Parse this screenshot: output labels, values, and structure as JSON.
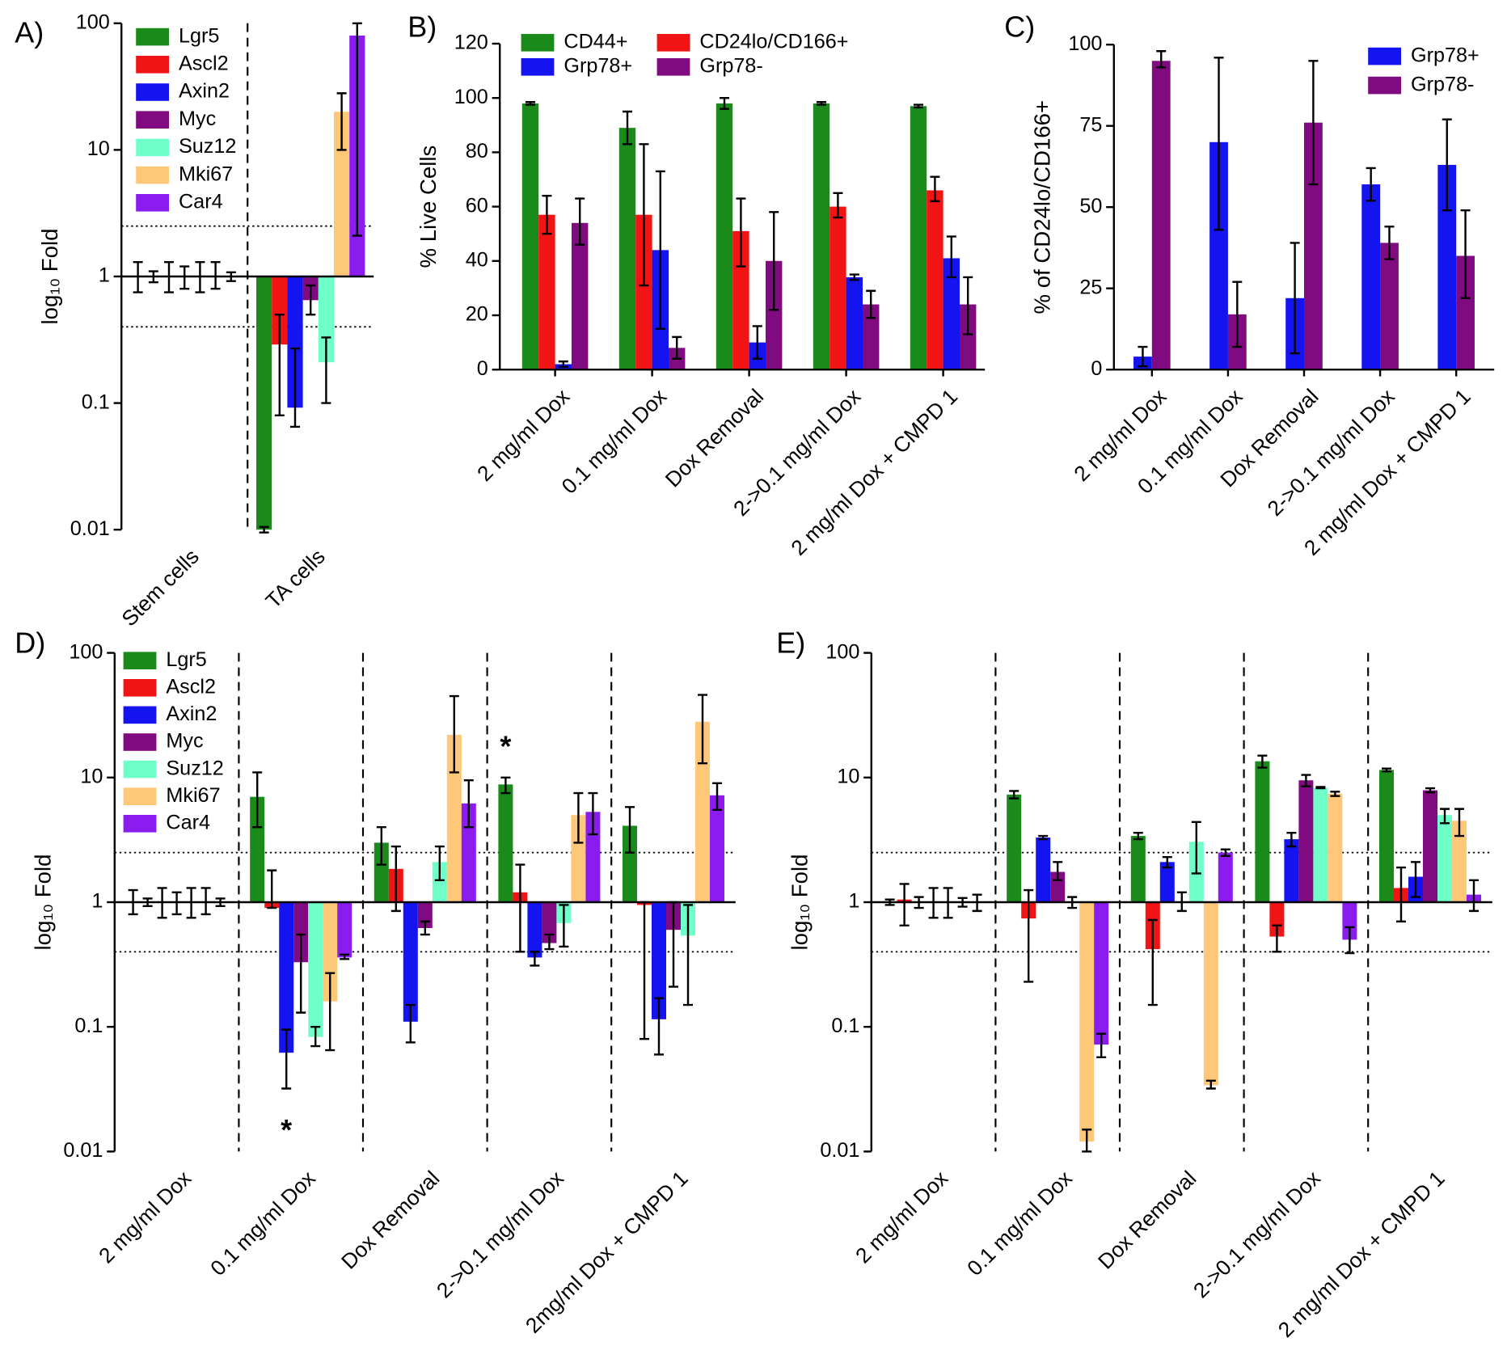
{
  "chart_data": [
    {
      "type": "log-bar",
      "panel_label": "A)",
      "ylabel": "log₁₀ Fold",
      "log_scale": true,
      "ylim": [
        0.01,
        100
      ],
      "yticks": [
        0.01,
        0.1,
        1,
        10,
        100
      ],
      "bar_base": 1,
      "ref_lines": [
        2.5,
        0.4
      ],
      "group_separators": true,
      "categories": [
        "Stem cells",
        "TA cells"
      ],
      "series": [
        {
          "name": "Lgr5",
          "color": "#1a8a1a",
          "values": [
            1,
            0.01
          ],
          "err_low": [
            0.75,
            0.0095
          ],
          "err_high": [
            1.3,
            0.0105
          ]
        },
        {
          "name": "Ascl2",
          "color": "#f01414",
          "values": [
            1,
            0.29
          ],
          "err_low": [
            0.9,
            0.08
          ],
          "err_high": [
            1.1,
            0.5
          ]
        },
        {
          "name": "Axin2",
          "color": "#1414f0",
          "values": [
            1,
            0.092
          ],
          "err_low": [
            0.75,
            0.065
          ],
          "err_high": [
            1.3,
            0.27
          ]
        },
        {
          "name": "Myc",
          "color": "#800a80",
          "values": [
            1,
            0.65
          ],
          "err_low": [
            0.8,
            0.5
          ],
          "err_high": [
            1.2,
            0.85
          ]
        },
        {
          "name": "Suz12",
          "color": "#6fffc8",
          "values": [
            1,
            0.21
          ],
          "err_low": [
            0.75,
            0.1
          ],
          "err_high": [
            1.3,
            0.33
          ]
        },
        {
          "name": "Mki67",
          "color": "#ffc878",
          "values": [
            1,
            20
          ],
          "err_low": [
            0.8,
            10
          ],
          "err_high": [
            1.3,
            28
          ]
        },
        {
          "name": "Car4",
          "color": "#8b1cf0",
          "values": [
            1,
            80
          ],
          "err_low": [
            0.92,
            2.1
          ],
          "err_high": [
            1.08,
            100
          ]
        }
      ]
    },
    {
      "type": "bar",
      "panel_label": "B)",
      "ylabel": "% Live Cells",
      "ylim": [
        0,
        120
      ],
      "yticks": [
        0,
        20,
        40,
        60,
        80,
        100,
        120
      ],
      "bar_base": 0,
      "categories": [
        "2 mg/ml Dox",
        "0.1 mg/ml Dox",
        "Dox Removal",
        "2->0.1 mg/ml Dox",
        "2 mg/ml Dox + CMPD 1"
      ],
      "series": [
        {
          "name": "CD44+",
          "color": "#1a8a1a",
          "values": [
            98,
            89,
            98,
            98,
            97
          ],
          "err_low": [
            97.5,
            83,
            96,
            97.5,
            96.5
          ],
          "err_high": [
            98.5,
            95,
            100,
            98.5,
            97.5
          ]
        },
        {
          "name": "CD24lo/CD166+",
          "color": "#f01414",
          "values": [
            57,
            57,
            51,
            60,
            66
          ],
          "err_low": [
            50,
            31,
            38,
            56,
            62
          ],
          "err_high": [
            64,
            83,
            63,
            65,
            71
          ]
        },
        {
          "name": "Grp78+",
          "color": "#1414f0",
          "values": [
            2,
            44,
            10,
            34,
            41
          ],
          "err_low": [
            1,
            15,
            4,
            33,
            34
          ],
          "err_high": [
            3,
            73,
            16,
            35,
            49
          ]
        },
        {
          "name": "Grp78-",
          "color": "#800a80",
          "values": [
            54,
            8,
            40,
            24,
            24
          ],
          "err_low": [
            46,
            4,
            22,
            19,
            13
          ],
          "err_high": [
            63,
            12,
            58,
            29,
            34
          ]
        }
      ]
    },
    {
      "type": "bar",
      "panel_label": "C)",
      "ylabel": "% of CD24lo/CD166+",
      "ylim": [
        0,
        100
      ],
      "yticks": [
        0,
        25,
        50,
        75,
        100
      ],
      "bar_base": 0,
      "categories": [
        "2 mg/ml Dox",
        "0.1 mg/ml Dox",
        "Dox Removal",
        "2->0.1 mg/ml Dox",
        "2 mg/ml Dox + CMPD 1"
      ],
      "series": [
        {
          "name": "Grp78+",
          "color": "#1414f0",
          "values": [
            4,
            70,
            22,
            57,
            63
          ],
          "err_low": [
            1,
            43,
            5,
            52,
            49
          ],
          "err_high": [
            7,
            96,
            39,
            62,
            77
          ]
        },
        {
          "name": "Grp78-",
          "color": "#800a80",
          "values": [
            95,
            17,
            76,
            39,
            35
          ],
          "err_low": [
            93,
            7,
            57,
            34,
            22
          ],
          "err_high": [
            98,
            27,
            95,
            44,
            49
          ]
        }
      ]
    },
    {
      "type": "log-bar",
      "panel_label": "D)",
      "ylabel": "log₁₀ Fold",
      "log_scale": true,
      "ylim": [
        0.01,
        100
      ],
      "yticks": [
        0.01,
        0.1,
        1,
        10,
        100
      ],
      "bar_base": 1,
      "ref_lines": [
        2.5,
        0.4
      ],
      "group_separators": true,
      "annotations": [
        "*",
        "*"
      ],
      "categories": [
        "2 mg/ml Dox",
        "0.1 mg/ml Dox",
        "Dox Removal",
        "2->0.1 mg/ml Dox",
        "2mg/ml Dox + CMPD 1"
      ],
      "series": [
        {
          "name": "Lgr5",
          "color": "#1a8a1a",
          "values": [
            1,
            7,
            3,
            8.8,
            4.1
          ],
          "err_low": [
            0.8,
            4,
            2,
            7.5,
            2.5
          ],
          "err_high": [
            1.25,
            11,
            4,
            10,
            5.8
          ]
        },
        {
          "name": "Ascl2",
          "color": "#f01414",
          "values": [
            1,
            0.9,
            1.85,
            1.2,
            0.95
          ],
          "err_low": [
            0.93,
            0.9,
            0.85,
            0.4,
            0.08
          ],
          "err_high": [
            1.07,
            1.8,
            2.8,
            2,
            1
          ]
        },
        {
          "name": "Axin2",
          "color": "#1414f0",
          "values": [
            1,
            0.062,
            0.11,
            0.36,
            0.115
          ],
          "err_low": [
            0.75,
            0.032,
            0.075,
            0.31,
            0.06
          ],
          "err_high": [
            1.3,
            0.095,
            0.15,
            0.4,
            0.17
          ]
        },
        {
          "name": "Myc",
          "color": "#800a80",
          "values": [
            1,
            0.33,
            0.62,
            0.47,
            0.6
          ],
          "err_low": [
            0.8,
            0.13,
            0.55,
            0.42,
            0.21
          ],
          "err_high": [
            1.2,
            0.55,
            0.7,
            0.55,
            1
          ]
        },
        {
          "name": "Suz12",
          "color": "#6fffc8",
          "values": [
            1,
            0.083,
            2.1,
            0.68,
            0.54
          ],
          "err_low": [
            0.75,
            0.07,
            1.5,
            0.44,
            0.15
          ],
          "err_high": [
            1.3,
            0.1,
            2.8,
            0.95,
            0.95
          ]
        },
        {
          "name": "Mki67",
          "color": "#ffc878",
          "values": [
            1,
            0.16,
            22,
            5,
            28
          ],
          "err_low": [
            0.8,
            0.065,
            11,
            3,
            13
          ],
          "err_high": [
            1.3,
            0.27,
            45,
            7.5,
            46
          ]
        },
        {
          "name": "Car4",
          "color": "#8b1cf0",
          "values": [
            1,
            0.36,
            6.2,
            5.3,
            7.2
          ],
          "err_low": [
            0.93,
            0.35,
            4,
            3.5,
            5.5
          ],
          "err_high": [
            1.07,
            0.38,
            9.5,
            7.5,
            9
          ]
        }
      ]
    },
    {
      "type": "log-bar",
      "panel_label": "E)",
      "ylabel": "log₁₀ Fold",
      "log_scale": true,
      "ylim": [
        0.01,
        100
      ],
      "yticks": [
        0.01,
        0.1,
        1,
        10,
        100
      ],
      "bar_base": 1,
      "ref_lines": [
        2.5,
        0.4
      ],
      "group_separators": true,
      "categories": [
        "2 mg/ml Dox",
        "0.1 mg/ml Dox",
        "Dox Removal",
        "2->0.1 mg/ml Dox",
        "2 mg/ml Dox + CMPD 1"
      ],
      "series": [
        {
          "color": "#1a8a1a",
          "values": [
            1,
            7.3,
            3.4,
            13.5,
            11.5
          ],
          "err_low": [
            0.95,
            6.8,
            3.2,
            12,
            11.2
          ],
          "err_high": [
            1.05,
            7.8,
            3.6,
            15,
            11.8
          ]
        },
        {
          "color": "#f01414",
          "values": [
            1.05,
            0.74,
            0.42,
            0.53,
            1.3
          ],
          "err_low": [
            0.65,
            0.23,
            0.15,
            0.4,
            0.7
          ],
          "err_high": [
            1.4,
            1.25,
            0.72,
            0.65,
            1.9
          ]
        },
        {
          "color": "#1414f0",
          "values": [
            1,
            3.3,
            2.1,
            3.2,
            1.6
          ],
          "err_low": [
            0.9,
            3.2,
            1.9,
            2.8,
            1.1
          ],
          "err_high": [
            1.1,
            3.4,
            2.3,
            3.6,
            2.1
          ]
        },
        {
          "color": "#800a80",
          "values": [
            1,
            1.75,
            1,
            9.5,
            7.9
          ],
          "err_low": [
            0.75,
            1.5,
            0.85,
            8.5,
            7.6
          ],
          "err_high": [
            1.3,
            2.1,
            1.2,
            10.5,
            8.2
          ]
        },
        {
          "color": "#6fffc8",
          "values": [
            1,
            1,
            3.05,
            8.3,
            5
          ],
          "err_low": [
            0.75,
            0.9,
            1.7,
            8.2,
            4.3
          ],
          "err_high": [
            1.3,
            1.1,
            4.4,
            8.4,
            5.6
          ]
        },
        {
          "color": "#ffc878",
          "values": [
            1,
            0.012,
            0.034,
            7.4,
            4.5
          ],
          "err_low": [
            0.92,
            0.01,
            0.032,
            7.1,
            3.4
          ],
          "err_high": [
            1.08,
            0.015,
            0.037,
            7.7,
            5.6
          ]
        },
        {
          "color": "#8b1cf0",
          "values": [
            1,
            0.072,
            2.5,
            0.5,
            1.15
          ],
          "err_low": [
            0.85,
            0.057,
            2.35,
            0.39,
            0.85
          ],
          "err_high": [
            1.15,
            0.088,
            2.65,
            0.63,
            1.5
          ]
        }
      ]
    }
  ]
}
